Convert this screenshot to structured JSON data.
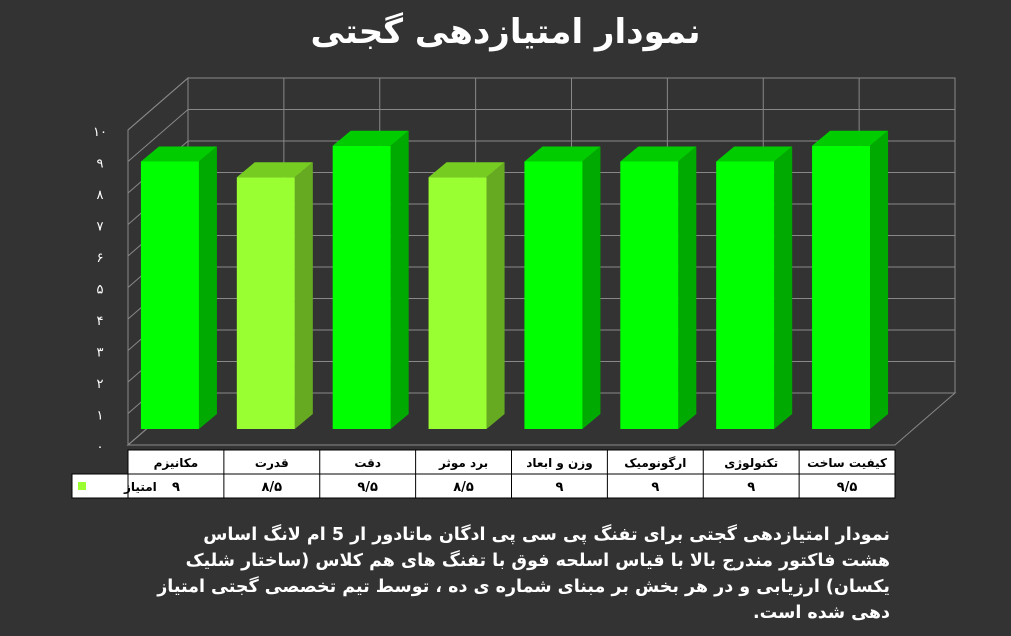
{
  "title": "نمودار امتیازدهی گجتی",
  "caption": "نمودار امتیازدهی گجتی برای تفنگ پی سی پی ادگان ماتادور ار 5 ام لانگ اساس هشت فاکتور مندرج بالا با قیاس اسلحه فوق با تفنگ های هم کلاس (ساختار شلیک یکسان) ارزیابی و در هر بخش بر مبنای شماره ی ده ، توسط تیم تخصصی گجتی امتیاز دهی شده است.",
  "colors": {
    "background": "#333333",
    "bar_dark_green": "#00ff00",
    "bar_light_green": "#99ff33",
    "grid": "#888888",
    "table_bg": "#ffffff",
    "table_text": "#000000"
  },
  "chart_data": {
    "type": "bar",
    "title": "نمودار امتیازدهی گجتی",
    "categories": [
      "مکانیزم",
      "قدرت",
      "دقت",
      "برد موثر",
      "وزن و ابعاد",
      "ارگونومیک",
      "تکنولوژی",
      "کیفیت ساخت"
    ],
    "series": [
      {
        "name": "امتیاز",
        "values": [
          9,
          8.5,
          9.5,
          8.5,
          9,
          9,
          9,
          9.5
        ],
        "value_labels": [
          "۹",
          "۸/۵",
          "۹/۵",
          "۸/۵",
          "۹",
          "۹",
          "۹",
          "۹/۵"
        ]
      }
    ],
    "bar_shades": [
      "dark",
      "light",
      "dark",
      "light",
      "dark",
      "dark",
      "dark",
      "dark"
    ],
    "ylim": [
      0,
      10
    ],
    "yticks": [
      0,
      1,
      2,
      3,
      4,
      5,
      6,
      7,
      8,
      9,
      10
    ],
    "ytick_labels": [
      "۰",
      "۱",
      "۲",
      "۳",
      "۴",
      "۵",
      "۶",
      "۷",
      "۸",
      "۹",
      "۱۰"
    ],
    "grid": true,
    "legend": "data-table-left",
    "three_d": true
  }
}
